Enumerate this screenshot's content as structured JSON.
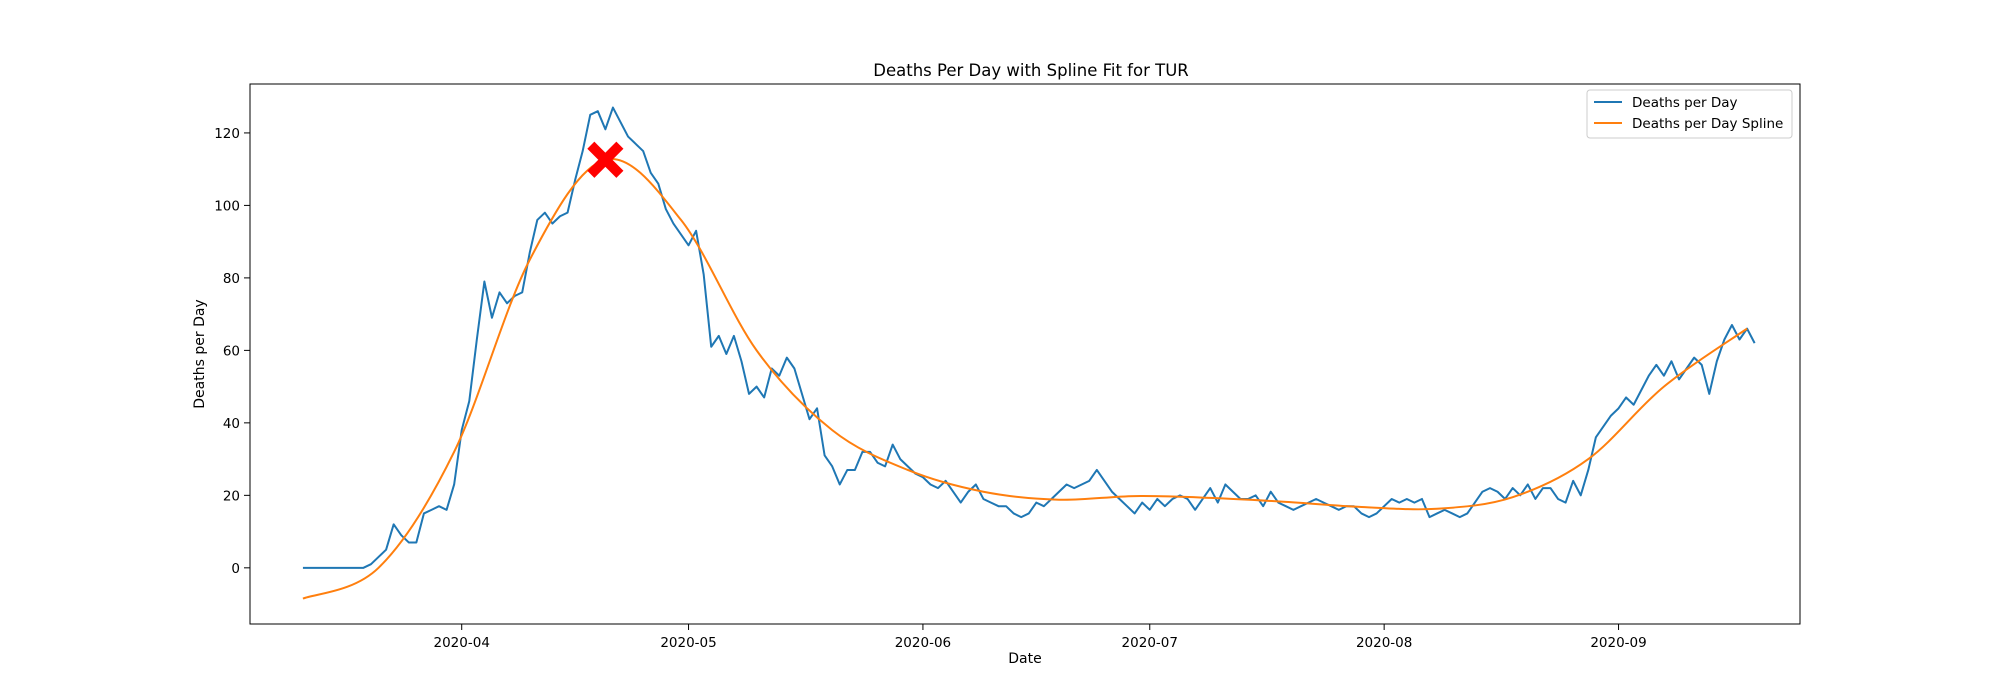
{
  "chart_data": {
    "type": "line",
    "title": "Deaths Per Day with Spline Fit for TUR",
    "xlabel": "Date",
    "ylabel": "Deaths per Day",
    "x_start": "2020-03-11",
    "x_end": "2020-09-18",
    "xlim": [
      "2020-03-04",
      "2020-09-25"
    ],
    "ylim": [
      -15.5,
      133.5
    ],
    "x_ticks": [
      "2020-04",
      "2020-05",
      "2020-06",
      "2020-07",
      "2020-08",
      "2020-09"
    ],
    "y_ticks": [
      0,
      20,
      40,
      60,
      80,
      100,
      120
    ],
    "grid": false,
    "legend_position": "top-right",
    "series": [
      {
        "name": "Deaths per Day",
        "color": "#1f77b4",
        "values": [
          0,
          0,
          0,
          0,
          0,
          0,
          0,
          0,
          0,
          1,
          3,
          5,
          12,
          9,
          7,
          7,
          15,
          16,
          17,
          16,
          23,
          38,
          46,
          63,
          79,
          69,
          76,
          73,
          75,
          76,
          87,
          96,
          98,
          95,
          97,
          98,
          107,
          115,
          125,
          126,
          121,
          127,
          123,
          119,
          117,
          115,
          109,
          106,
          99,
          95,
          92,
          89,
          93,
          81,
          61,
          64,
          59,
          64,
          57,
          48,
          50,
          47,
          55,
          53,
          58,
          55,
          48,
          41,
          44,
          31,
          28,
          23,
          27,
          27,
          32,
          32,
          29,
          28,
          34,
          30,
          28,
          26,
          25,
          23,
          22,
          24,
          21,
          18,
          21,
          23,
          19,
          18,
          17,
          17,
          15,
          14,
          15,
          18,
          17,
          19,
          21,
          23,
          22,
          23,
          24,
          27,
          24,
          21,
          19,
          17,
          15,
          18,
          16,
          19,
          17,
          19,
          20,
          19,
          16,
          19,
          22,
          18,
          23,
          21,
          19,
          19,
          20,
          17,
          21,
          18,
          17,
          16,
          17,
          18,
          19,
          18,
          17,
          16,
          17,
          17,
          15,
          14,
          15,
          17,
          19,
          18,
          19,
          18,
          19,
          14,
          15,
          16,
          15,
          14,
          15,
          18,
          21,
          22,
          21,
          19,
          22,
          20,
          23,
          19,
          22,
          22,
          19,
          18,
          24,
          20,
          27,
          36,
          39,
          42,
          44,
          47,
          45,
          49,
          53,
          56,
          53,
          57,
          52,
          55,
          58,
          56,
          48,
          57,
          63,
          67,
          63,
          66,
          62
        ]
      },
      {
        "name": "Deaths per Day Spline",
        "color": "#ff7f0e",
        "knots": [
          [
            "2020-03-11",
            -8.5
          ],
          [
            "2020-03-21",
            0
          ],
          [
            "2020-03-31",
            32
          ],
          [
            "2020-04-10",
            85
          ],
          [
            "2020-04-20",
            112.6
          ],
          [
            "2020-04-30",
            96
          ],
          [
            "2020-05-10",
            60
          ],
          [
            "2020-05-20",
            38
          ],
          [
            "2020-05-30",
            27
          ],
          [
            "2020-06-09",
            21
          ],
          [
            "2020-06-19",
            18.8
          ],
          [
            "2020-06-29",
            19.8
          ],
          [
            "2020-07-09",
            19.3
          ],
          [
            "2020-07-19",
            18.2
          ],
          [
            "2020-07-29",
            16.8
          ],
          [
            "2020-08-08",
            16.3
          ],
          [
            "2020-08-18",
            19.5
          ],
          [
            "2020-08-28",
            30
          ],
          [
            "2020-09-07",
            50
          ],
          [
            "2020-09-18",
            66
          ]
        ]
      }
    ],
    "annotations": [
      {
        "type": "marker",
        "shape": "X",
        "color": "#ff0000",
        "x": "2020-04-20",
        "y": 112.6
      }
    ]
  }
}
